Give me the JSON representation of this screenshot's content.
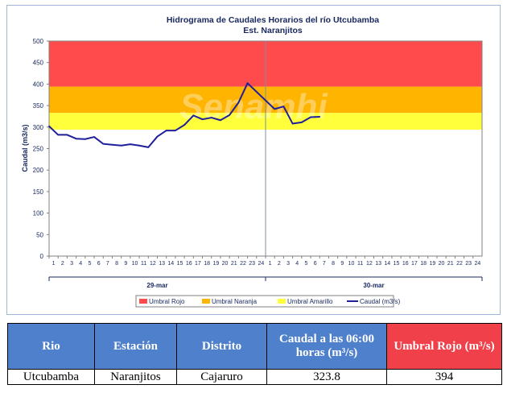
{
  "chart_data": {
    "type": "line",
    "title": "Hidrograma de Caudales Horarios del río Utcubamba",
    "subtitle": "Est. Naranjitos",
    "ylabel": "Caudal (m3/s)",
    "xlabel": "",
    "ylim": [
      0,
      500
    ],
    "yticks": [
      0,
      50,
      100,
      150,
      200,
      250,
      300,
      350,
      400,
      450,
      500
    ],
    "x_tick_labels": [
      "1",
      "2",
      "3",
      "4",
      "5",
      "6",
      "7",
      "8",
      "9",
      "10",
      "11",
      "12",
      "13",
      "14",
      "15",
      "16",
      "17",
      "18",
      "19",
      "20",
      "21",
      "22",
      "23",
      "24",
      "1",
      "2",
      "3",
      "4",
      "5",
      "6",
      "7",
      "8",
      "9",
      "10",
      "11",
      "12",
      "13",
      "14",
      "15",
      "16",
      "17",
      "18",
      "19",
      "20",
      "21",
      "22",
      "23",
      "24"
    ],
    "day_groups": [
      {
        "label": "29-mar",
        "start": 0,
        "end": 24
      },
      {
        "label": "30-mar",
        "start": 24,
        "end": 48
      }
    ],
    "thresholds": [
      {
        "name": "Umbral Rojo",
        "from": 394,
        "to": 500,
        "color": "#ff4b4b"
      },
      {
        "name": "Umbral Naranja",
        "from": 333,
        "to": 394,
        "color": "#ffb400"
      },
      {
        "name": "Umbral Amarillo",
        "from": 294,
        "to": 333,
        "color": "#ffff3c"
      }
    ],
    "series": [
      {
        "name": "Caudal (m3/s)",
        "color": "#1f1f9a",
        "x": [
          0,
          1,
          2,
          3,
          4,
          5,
          6,
          7,
          8,
          9,
          10,
          11,
          12,
          13,
          14,
          15,
          16,
          17,
          18,
          19,
          20,
          21,
          22,
          23,
          24,
          25,
          26,
          27,
          28,
          29,
          30
        ],
        "values": [
          302,
          282,
          282,
          273,
          272,
          277,
          261,
          259,
          257,
          260,
          257,
          253,
          278,
          292,
          292,
          305,
          327,
          318,
          322,
          316,
          328,
          357,
          402,
          382,
          362,
          342,
          348,
          308,
          311,
          323,
          324
        ]
      }
    ],
    "legend_position": "bottom",
    "grid": false,
    "watermark": "Senamhi"
  },
  "table": {
    "headers": [
      "Rio",
      "Estación",
      "Distrito",
      "Caudal a las 06:00 horas (m³/s)",
      "Umbral Rojo (m³/s)"
    ],
    "row": [
      "Utcubamba",
      "Naranjitos",
      "Cajaruro",
      "323.8",
      "394"
    ]
  }
}
